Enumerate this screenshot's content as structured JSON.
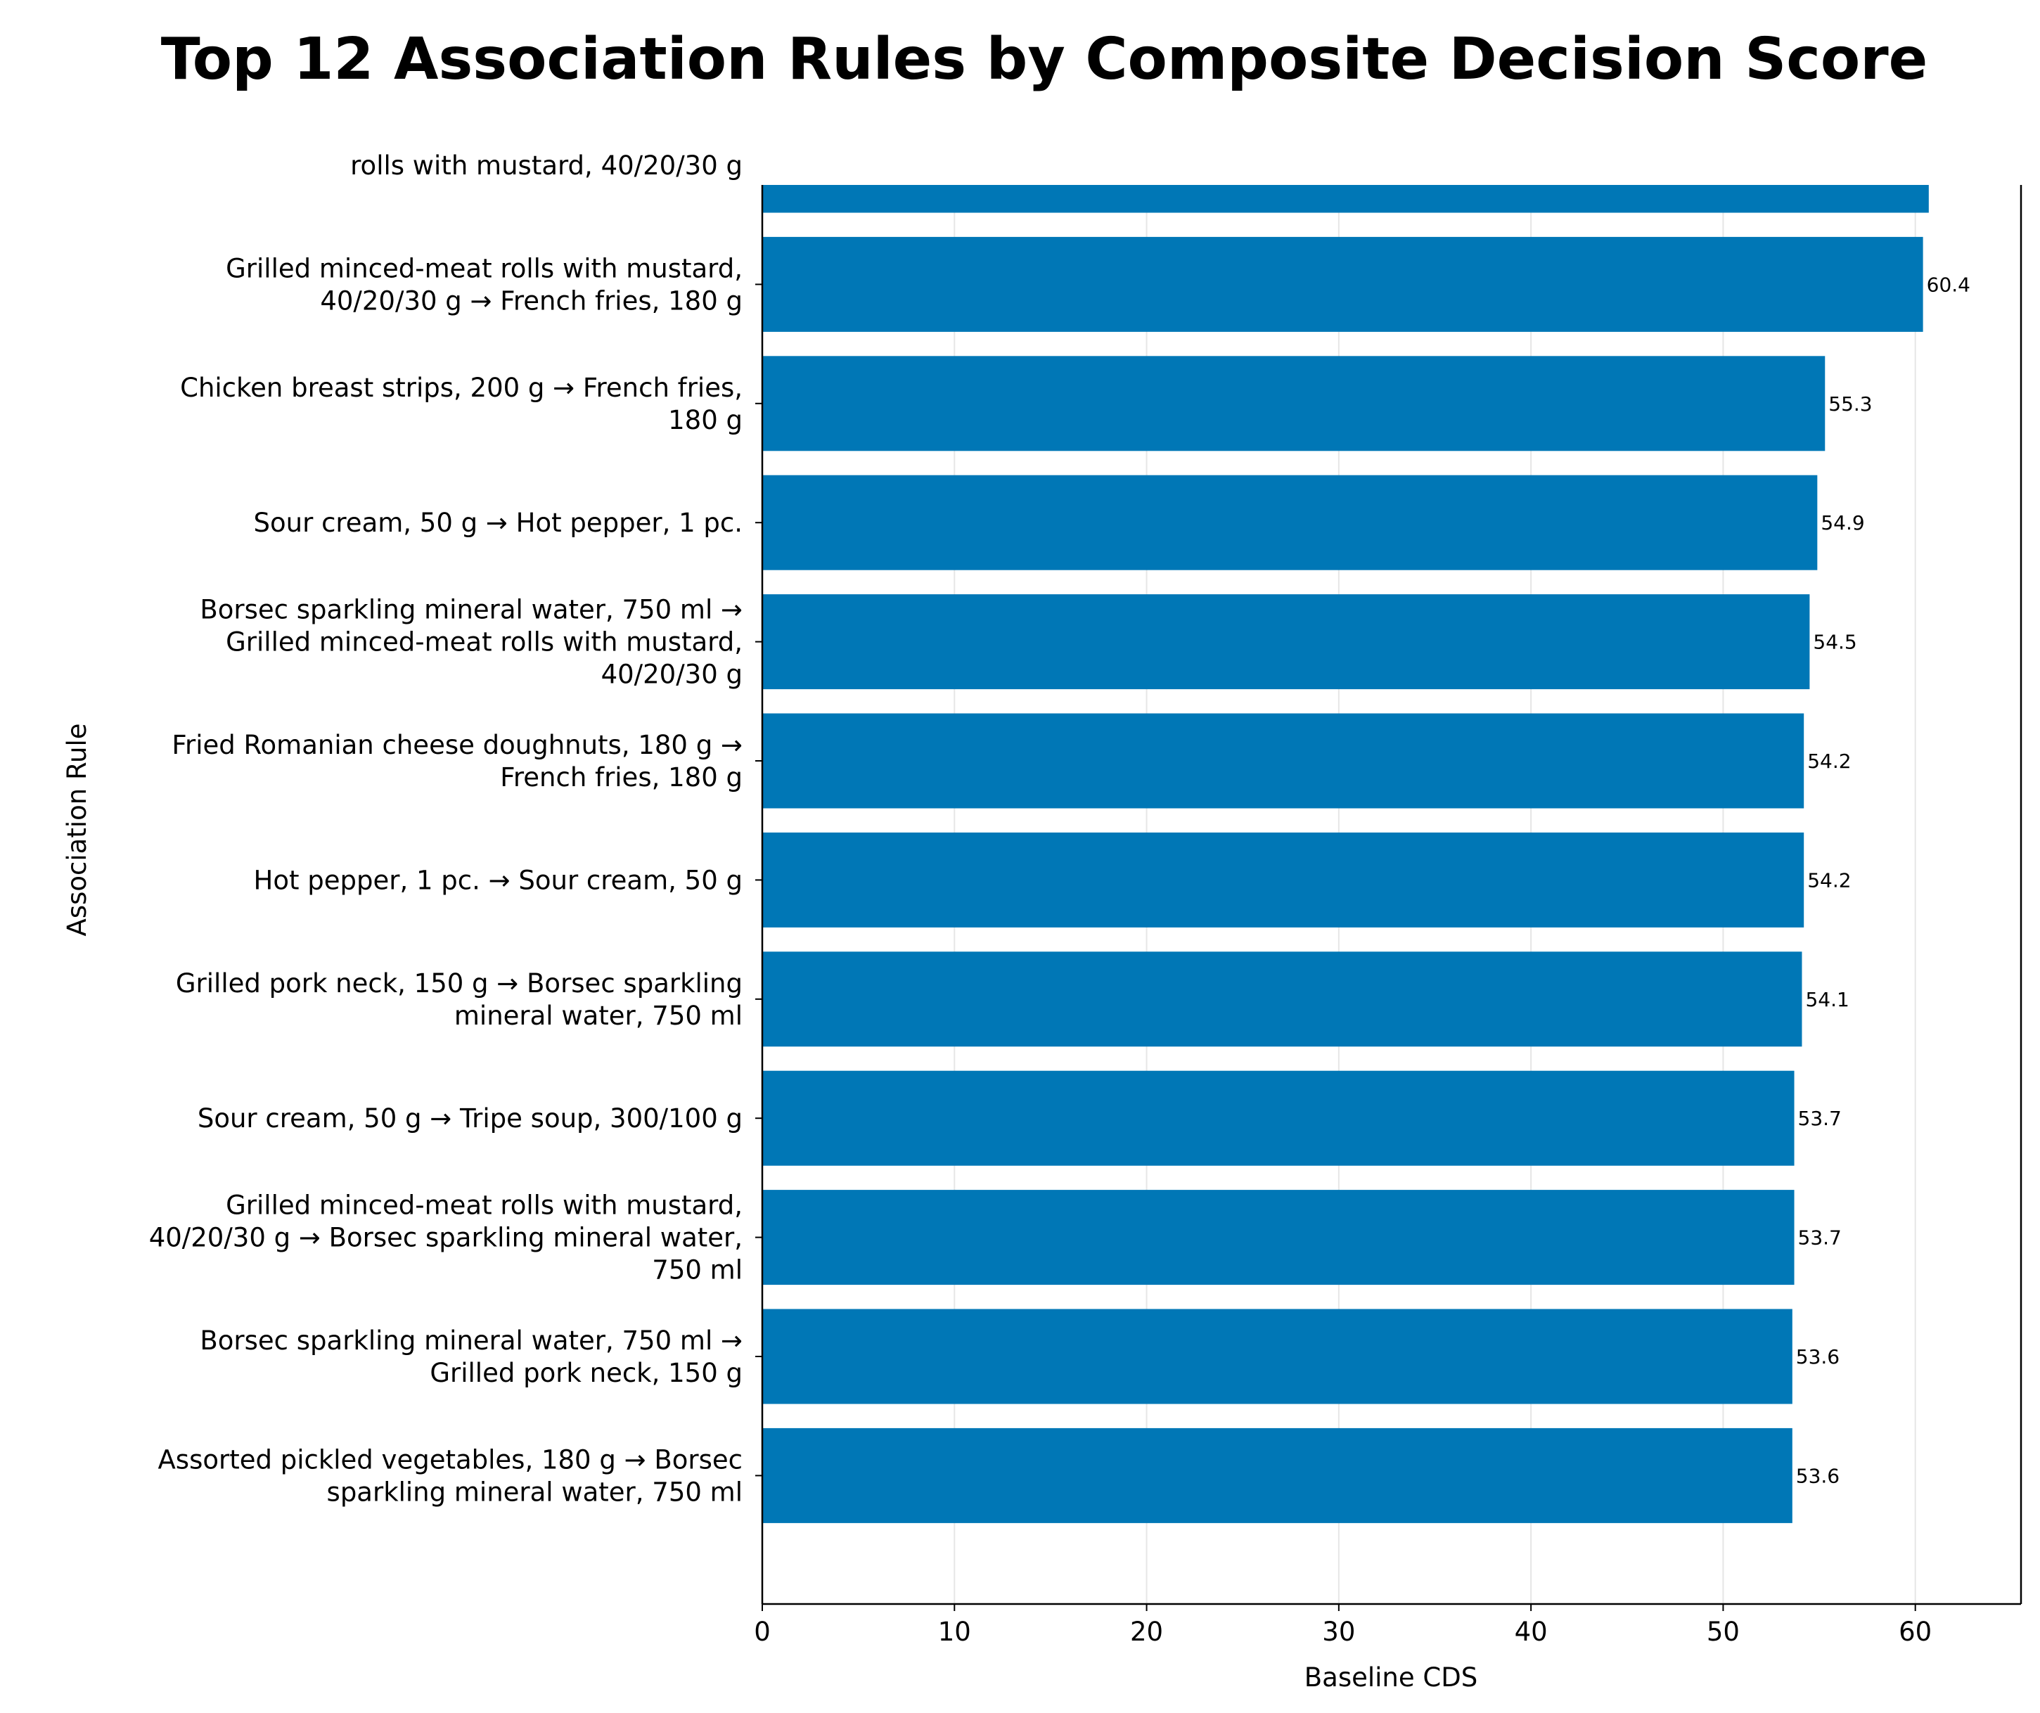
{
  "chart_data": {
    "type": "bar",
    "orientation": "horizontal",
    "title": "Top 12 Association Rules by Composite Decision Score",
    "xlabel": "Baseline CDS",
    "ylabel": "Association Rule",
    "xlim": [
      0,
      65.5
    ],
    "xticks": [
      "0",
      "10",
      "20",
      "30",
      "40",
      "50",
      "60"
    ],
    "grid": "x",
    "bar_color": "#0077b6",
    "categories": [
      "rolls with mustard, 40/20/30 g",
      "Grilled minced-meat rolls with mustard,\n40/20/30 g → French fries, 180 g",
      "Chicken breast strips, 200 g → French fries,\n180 g",
      "Sour cream, 50 g → Hot pepper, 1 pc.",
      "Borsec sparkling mineral water, 750 ml →\nGrilled minced-meat rolls with mustard,\n40/20/30 g",
      "Fried Romanian cheese doughnuts, 180 g →\nFrench fries, 180 g",
      "Hot pepper, 1 pc. → Sour cream, 50 g",
      "Grilled pork neck, 150 g → Borsec sparkling\nmineral water, 750 ml",
      "Sour cream, 50 g → Tripe soup, 300/100 g",
      "Grilled minced-meat rolls with mustard,\n40/20/30 g → Borsec sparkling mineral water,\n750 ml",
      "Borsec sparkling mineral water, 750 ml →\nGrilled pork neck, 150 g",
      "Assorted pickled vegetables, 180 g → Borsec\nsparkling mineral water, 750 ml"
    ],
    "values": [
      60.7,
      60.4,
      55.3,
      54.9,
      54.5,
      54.2,
      54.2,
      54.1,
      53.7,
      53.7,
      53.6,
      53.6
    ],
    "value_labels": [
      "",
      "60.4",
      "55.3",
      "54.9",
      "54.5",
      "54.2",
      "54.2",
      "54.1",
      "53.7",
      "53.7",
      "53.6",
      "53.6"
    ]
  }
}
